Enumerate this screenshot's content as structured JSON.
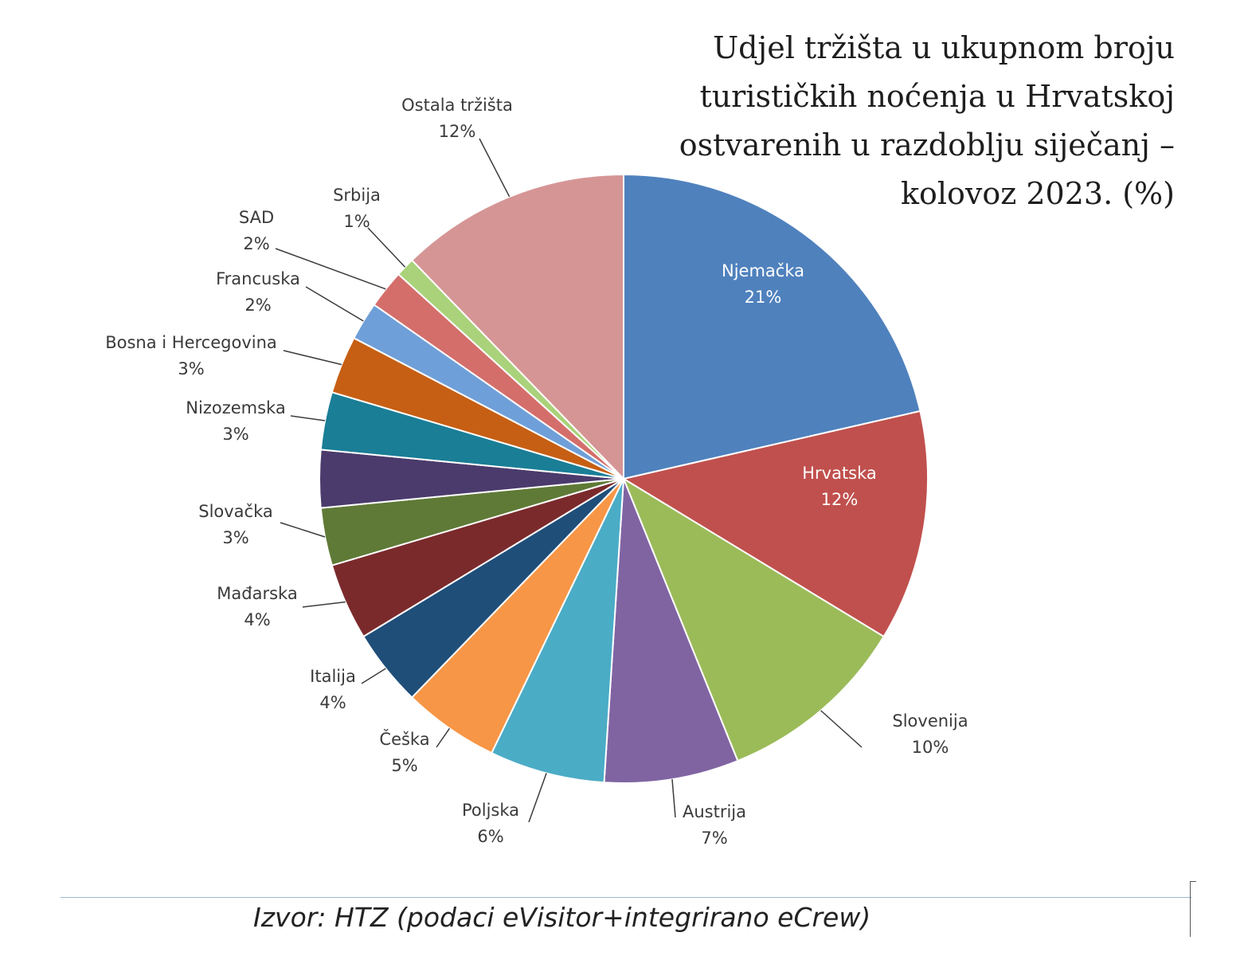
{
  "title_lines": [
    "Udjel tržišta u ukupnom broju",
    "turističkih noćenja u Hrvatskoj",
    "ostvarenih u razdoblju siječanj –",
    "kolovoz 2023. (%)"
  ],
  "source": "Izvor: HTZ (podaci eVisitor+integrirano eCrew)",
  "chart_data": {
    "type": "pie",
    "title": "Udjel tržišta u ukupnom broju turističkih noćenja u Hrvatskoj ostvarenih u razdoblju siječanj – kolovoz 2023. (%)",
    "start_angle": "12 o'clock",
    "direction": "clockwise",
    "slices": [
      {
        "label": "Njemačka",
        "value": 21,
        "value_label": "21%",
        "color": "#4f81bd"
      },
      {
        "label": "Hrvatska",
        "value": 12,
        "value_label": "12%",
        "color": "#c0504d"
      },
      {
        "label": "Slovenija",
        "value": 10,
        "value_label": "10%",
        "color": "#9bbb59"
      },
      {
        "label": "Austrija",
        "value": 7,
        "value_label": "7%",
        "color": "#8064a2"
      },
      {
        "label": "Poljska",
        "value": 6,
        "value_label": "6%",
        "color": "#4bacc6"
      },
      {
        "label": "Češka",
        "value": 5,
        "value_label": "5%",
        "color": "#f79646"
      },
      {
        "label": "Italija",
        "value": 4,
        "value_label": "4%",
        "color": "#1f4e79"
      },
      {
        "label": "Mađarska",
        "value": 4,
        "value_label": "4%",
        "color": "#7b2a2c"
      },
      {
        "label": "Slovačka",
        "value": 3,
        "value_label": "3%",
        "color": "#5f7a36"
      },
      {
        "label": "",
        "value": 3,
        "value_label": "",
        "color": "#4b3b6c"
      },
      {
        "label": "Nizozemska",
        "value": 3,
        "value_label": "3%",
        "color": "#1a7e96"
      },
      {
        "label": "Bosna i Hercegovina",
        "value": 3,
        "value_label": "3%",
        "color": "#c65f14"
      },
      {
        "label": "Francuska",
        "value": 2,
        "value_label": "2%",
        "color": "#6f9fd8"
      },
      {
        "label": "SAD",
        "value": 2,
        "value_label": "2%",
        "color": "#d46e6b"
      },
      {
        "label": "Srbija",
        "value": 1,
        "value_label": "1%",
        "color": "#a9d27a"
      },
      {
        "label": "Ostala tržišta",
        "value": 12,
        "value_label": "12%",
        "color": "#d69595"
      }
    ]
  }
}
